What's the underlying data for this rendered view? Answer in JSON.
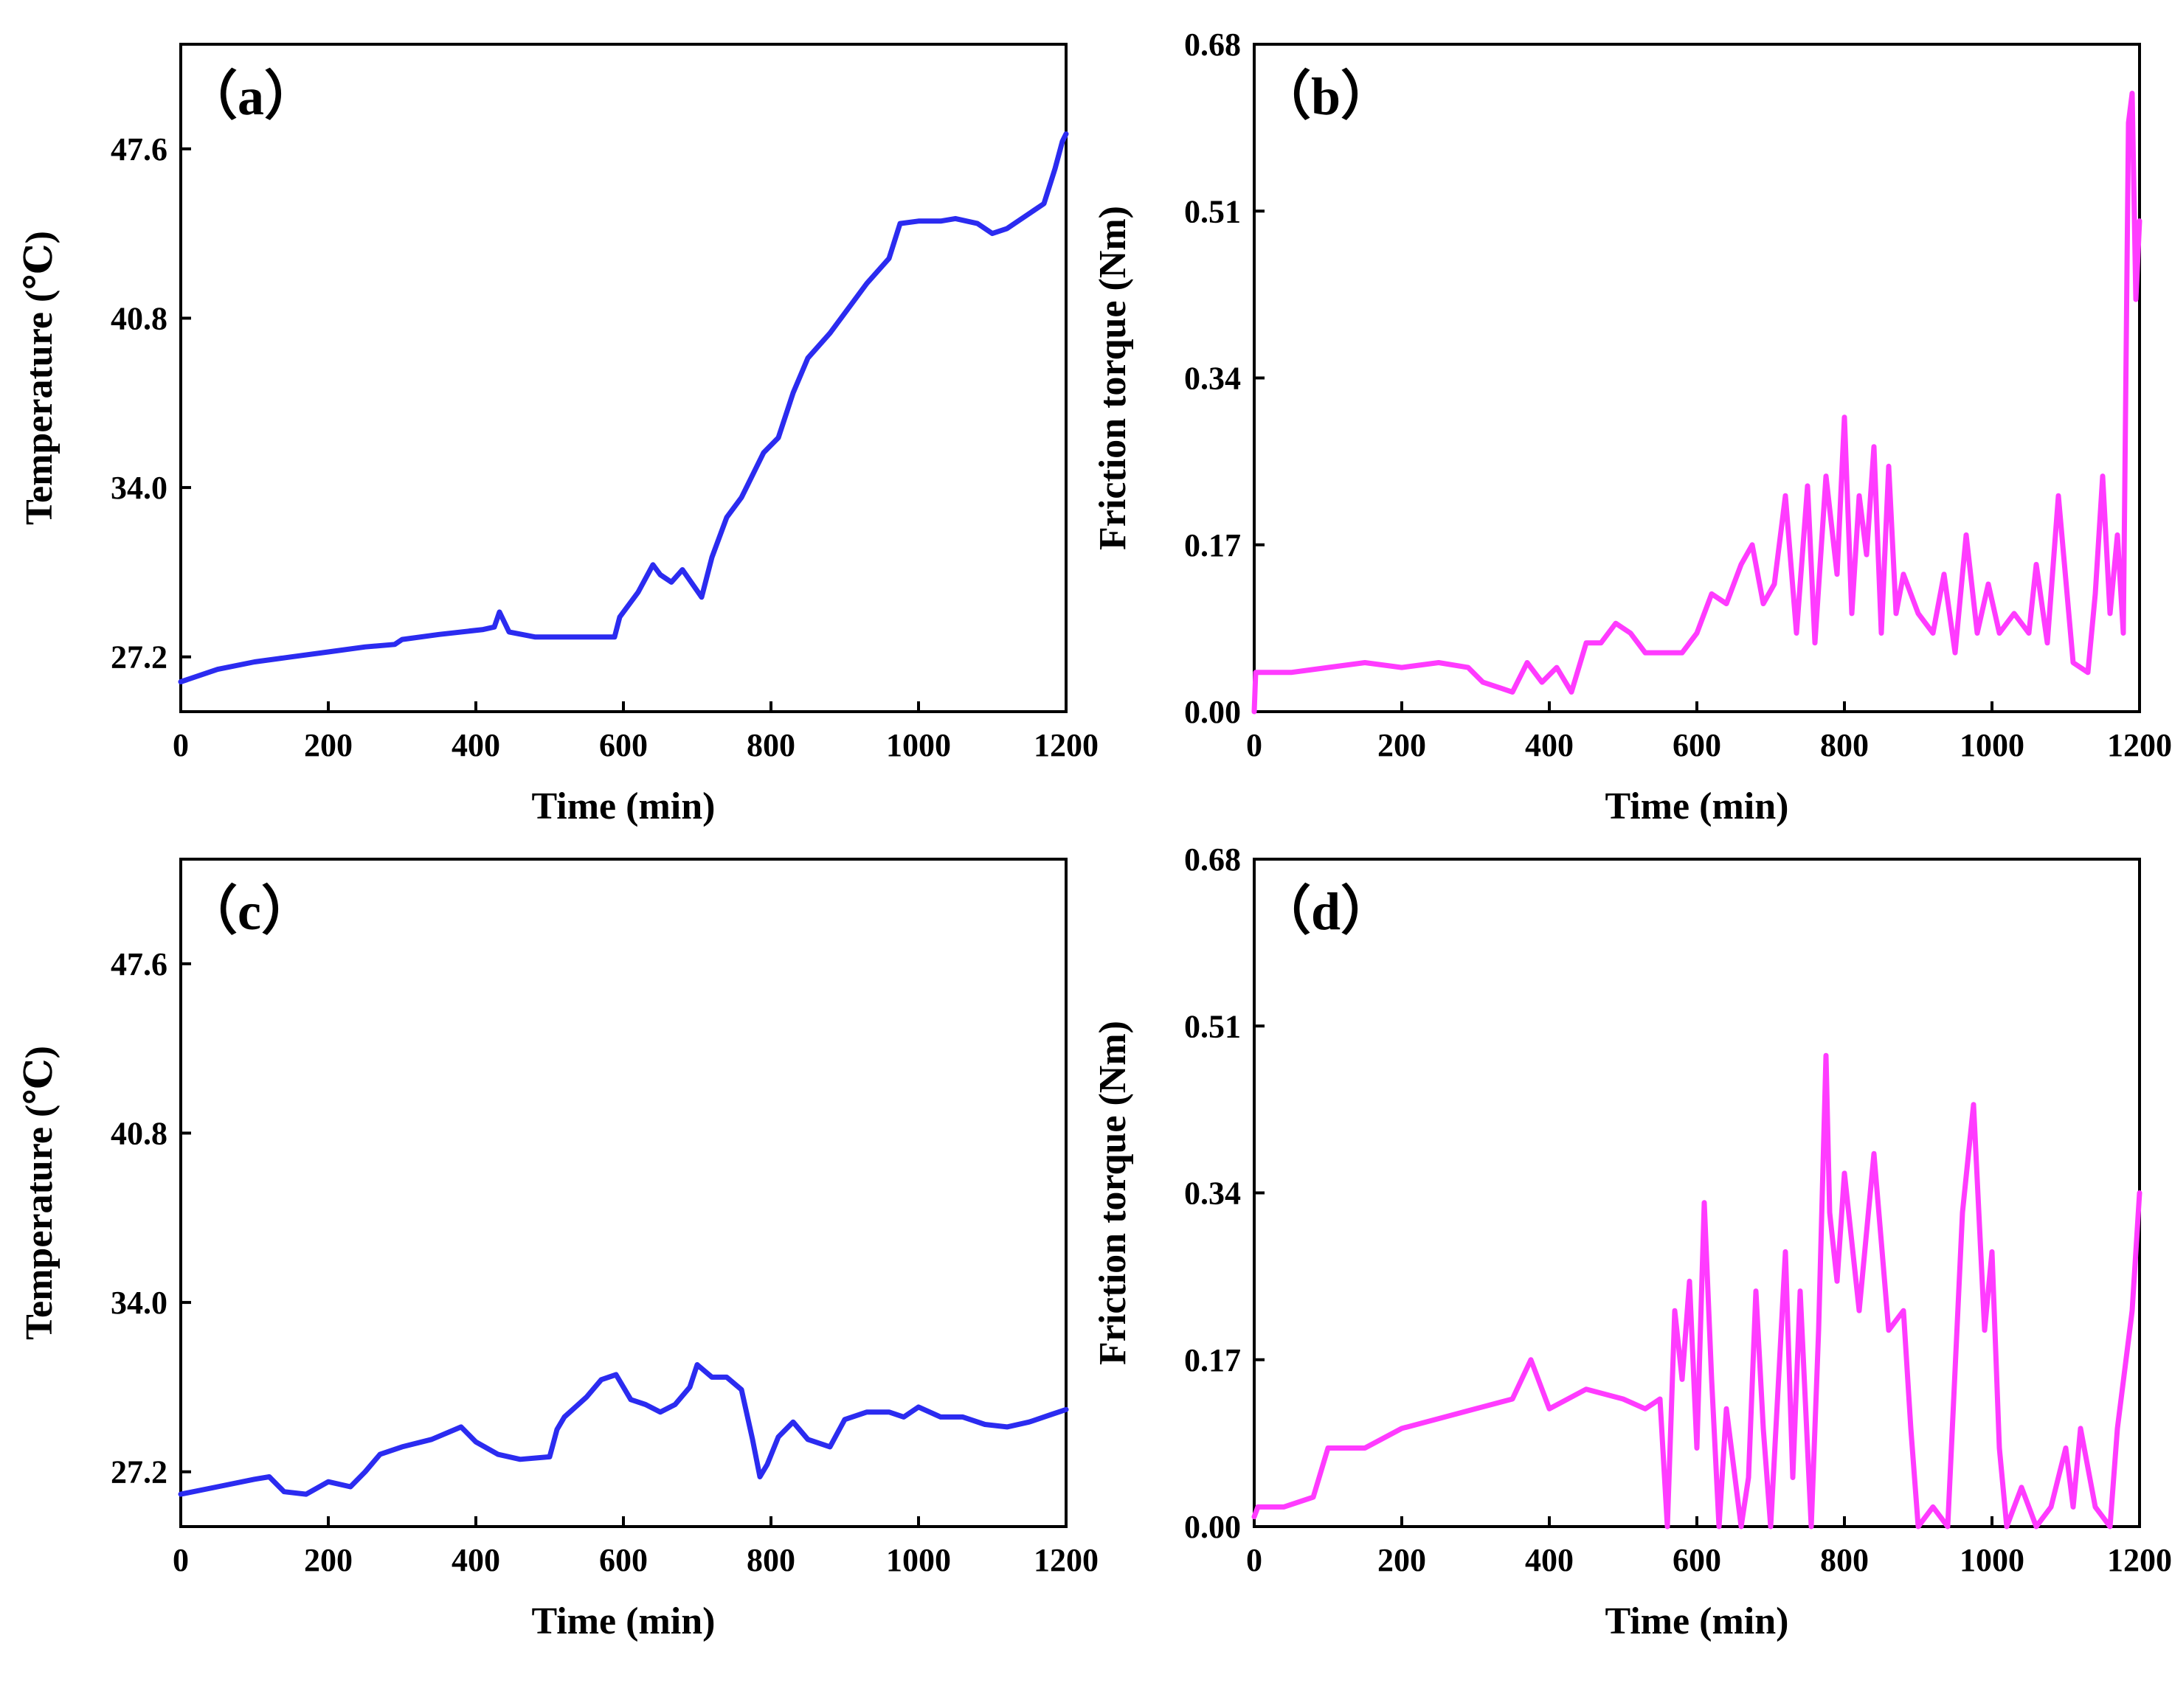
{
  "chart_data": [
    {
      "id": "a",
      "type": "line",
      "panel_label": "（a）",
      "xlabel": "Time (min)",
      "ylabel": "Temperature (℃)",
      "xlim": [
        0,
        1200
      ],
      "ylim": [
        25.0,
        51.8
      ],
      "xticks": [
        "0",
        "200",
        "400",
        "600",
        "800",
        "1000",
        "1200"
      ],
      "yticks": [
        "27.2",
        "34.0",
        "40.8",
        "47.6"
      ],
      "color": "#2b2bf0",
      "series": [
        {
          "name": "Temperature",
          "x": [
            0,
            50,
            100,
            150,
            200,
            250,
            290,
            300,
            350,
            410,
            425,
            432,
            445,
            480,
            550,
            588,
            595,
            620,
            640,
            650,
            665,
            680,
            706,
            720,
            740,
            760,
            790,
            810,
            830,
            850,
            880,
            900,
            930,
            960,
            975,
            1000,
            1030,
            1050,
            1080,
            1100,
            1120,
            1150,
            1170,
            1185,
            1195,
            1200
          ],
          "y": [
            26.2,
            26.7,
            27.0,
            27.2,
            27.4,
            27.6,
            27.7,
            27.9,
            28.1,
            28.3,
            28.4,
            29.0,
            28.2,
            28.0,
            28.0,
            28.0,
            28.8,
            29.8,
            30.9,
            30.5,
            30.2,
            30.7,
            29.6,
            31.2,
            32.8,
            33.6,
            35.4,
            36.0,
            37.8,
            39.2,
            40.2,
            41.0,
            42.2,
            43.2,
            44.6,
            44.7,
            44.7,
            44.8,
            44.6,
            44.2,
            44.4,
            45.0,
            45.4,
            46.8,
            47.9,
            48.2
          ]
        }
      ]
    },
    {
      "id": "b",
      "type": "line",
      "panel_label": "（b）",
      "xlabel": "Time (min)",
      "ylabel": "Friction torque (Nm)",
      "xlim": [
        0,
        1200
      ],
      "ylim": [
        0.0,
        0.68
      ],
      "xticks": [
        "0",
        "200",
        "400",
        "600",
        "800",
        "1000",
        "1200"
      ],
      "yticks": [
        "0.00",
        "0.17",
        "0.34",
        "0.51",
        "0.68"
      ],
      "color": "#ff3bff",
      "series": [
        {
          "name": "Friction torque",
          "x": [
            0,
            2,
            50,
            100,
            150,
            200,
            250,
            290,
            310,
            330,
            350,
            370,
            390,
            410,
            430,
            450,
            470,
            490,
            510,
            530,
            550,
            580,
            600,
            610,
            620,
            640,
            660,
            675,
            690,
            705,
            720,
            735,
            750,
            760,
            775,
            790,
            800,
            810,
            820,
            830,
            840,
            850,
            860,
            870,
            880,
            900,
            920,
            935,
            950,
            965,
            980,
            995,
            1010,
            1030,
            1050,
            1060,
            1075,
            1090,
            1110,
            1130,
            1140,
            1150,
            1160,
            1170,
            1178,
            1185,
            1190,
            1195,
            1200
          ],
          "y": [
            0.0,
            0.04,
            0.04,
            0.045,
            0.05,
            0.045,
            0.05,
            0.045,
            0.03,
            0.025,
            0.02,
            0.05,
            0.03,
            0.045,
            0.02,
            0.07,
            0.07,
            0.09,
            0.08,
            0.06,
            0.06,
            0.06,
            0.08,
            0.1,
            0.12,
            0.11,
            0.15,
            0.17,
            0.11,
            0.13,
            0.22,
            0.08,
            0.23,
            0.07,
            0.24,
            0.14,
            0.3,
            0.1,
            0.22,
            0.16,
            0.27,
            0.08,
            0.25,
            0.1,
            0.14,
            0.1,
            0.08,
            0.14,
            0.06,
            0.18,
            0.08,
            0.13,
            0.08,
            0.1,
            0.08,
            0.15,
            0.07,
            0.22,
            0.05,
            0.04,
            0.12,
            0.24,
            0.1,
            0.18,
            0.08,
            0.6,
            0.63,
            0.42,
            0.5
          ]
        }
      ]
    },
    {
      "id": "c",
      "type": "line",
      "panel_label": "（c）",
      "xlabel": "Time (min)",
      "ylabel": "Temperature (℃)",
      "xlim": [
        0,
        1200
      ],
      "ylim": [
        25.0,
        51.8
      ],
      "xticks": [
        "0",
        "200",
        "400",
        "600",
        "800",
        "1000",
        "1200"
      ],
      "yticks": [
        "27.2",
        "34.0",
        "40.8",
        "47.6"
      ],
      "color": "#2b2bf0",
      "series": [
        {
          "name": "Temperature",
          "x": [
            0,
            50,
            100,
            120,
            140,
            170,
            200,
            230,
            250,
            270,
            300,
            340,
            380,
            400,
            430,
            460,
            500,
            510,
            520,
            550,
            570,
            590,
            610,
            630,
            650,
            670,
            690,
            700,
            720,
            740,
            760,
            775,
            785,
            795,
            810,
            830,
            850,
            880,
            900,
            930,
            960,
            980,
            1000,
            1030,
            1060,
            1090,
            1120,
            1150,
            1180,
            1200
          ],
          "y": [
            26.3,
            26.6,
            26.9,
            27.0,
            26.4,
            26.3,
            26.8,
            26.6,
            27.2,
            27.9,
            28.2,
            28.5,
            29.0,
            28.4,
            27.9,
            27.7,
            27.8,
            28.9,
            29.4,
            30.2,
            30.9,
            31.1,
            30.1,
            29.9,
            29.6,
            29.9,
            30.6,
            31.5,
            31.0,
            31.0,
            30.5,
            28.5,
            27.0,
            27.5,
            28.6,
            29.2,
            28.5,
            28.2,
            29.3,
            29.6,
            29.6,
            29.4,
            29.8,
            29.4,
            29.4,
            29.1,
            29.0,
            29.2,
            29.5,
            29.7
          ]
        }
      ]
    },
    {
      "id": "d",
      "type": "line",
      "panel_label": "（d）",
      "xlabel": "Time (min)",
      "ylabel": "Friction torque (Nm)",
      "xlim": [
        0,
        1200
      ],
      "ylim": [
        0.0,
        0.68
      ],
      "xticks": [
        "0",
        "200",
        "400",
        "600",
        "800",
        "1000",
        "1200"
      ],
      "yticks": [
        "0.00",
        "0.17",
        "0.34",
        "0.51",
        "0.68"
      ],
      "color": "#ff3bff",
      "series": [
        {
          "name": "Friction torque",
          "x": [
            0,
            5,
            40,
            80,
            100,
            150,
            200,
            250,
            300,
            350,
            375,
            400,
            450,
            500,
            530,
            550,
            560,
            570,
            580,
            590,
            600,
            610,
            620,
            630,
            640,
            660,
            670,
            680,
            690,
            700,
            720,
            730,
            740,
            755,
            765,
            775,
            780,
            790,
            800,
            820,
            840,
            860,
            880,
            890,
            900,
            920,
            940,
            960,
            975,
            990,
            1000,
            1010,
            1020,
            1040,
            1060,
            1080,
            1100,
            1110,
            1120,
            1140,
            1160,
            1170,
            1180,
            1190,
            1200
          ],
          "y": [
            0.01,
            0.02,
            0.02,
            0.03,
            0.08,
            0.08,
            0.1,
            0.11,
            0.12,
            0.13,
            0.17,
            0.12,
            0.14,
            0.13,
            0.12,
            0.13,
            0.0,
            0.22,
            0.15,
            0.25,
            0.08,
            0.33,
            0.15,
            0.0,
            0.12,
            0.0,
            0.05,
            0.24,
            0.1,
            0.0,
            0.28,
            0.05,
            0.24,
            0.0,
            0.2,
            0.48,
            0.32,
            0.25,
            0.36,
            0.22,
            0.38,
            0.2,
            0.22,
            0.1,
            0.0,
            0.02,
            0.0,
            0.32,
            0.43,
            0.2,
            0.28,
            0.08,
            0.0,
            0.04,
            0.0,
            0.02,
            0.08,
            0.02,
            0.1,
            0.02,
            0.0,
            0.1,
            0.16,
            0.22,
            0.34
          ]
        }
      ]
    }
  ]
}
